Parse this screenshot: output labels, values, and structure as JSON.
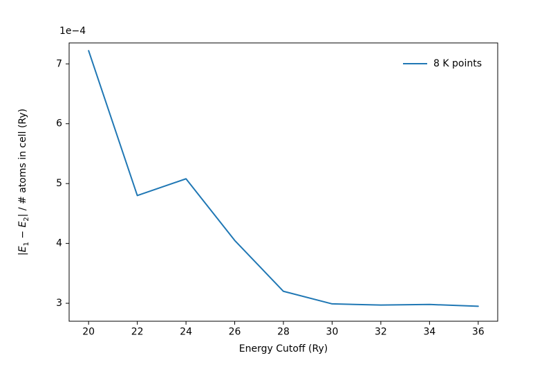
{
  "chart_data": {
    "type": "line",
    "title": "",
    "xlabel": "Energy Cutoff (Ry)",
    "ylabel": "|E₁ − E₂| / # atoms in cell (Ry)",
    "ylabel_parts": {
      "bar_open": "|",
      "E1": "E",
      "sub1": "1",
      "minus": " − ",
      "E2": "E",
      "sub2": "2",
      "rest": "| / # atoms in cell (Ry)"
    },
    "y_offset_text": "1e−4",
    "x": [
      20,
      22,
      24,
      26,
      28,
      30,
      32,
      34,
      36
    ],
    "series": [
      {
        "name": "8 K points",
        "color": "#1f77b4",
        "values": [
          7.22,
          4.8,
          5.08,
          4.05,
          3.2,
          2.99,
          2.97,
          2.98,
          2.95
        ]
      }
    ],
    "xticks": [
      20,
      22,
      24,
      26,
      28,
      30,
      32,
      34,
      36
    ],
    "yticks": [
      3,
      4,
      5,
      6,
      7
    ],
    "xlim": [
      19.2,
      36.8
    ],
    "ylim": [
      2.7,
      7.35
    ],
    "grid": false,
    "legend_position": "upper right"
  }
}
